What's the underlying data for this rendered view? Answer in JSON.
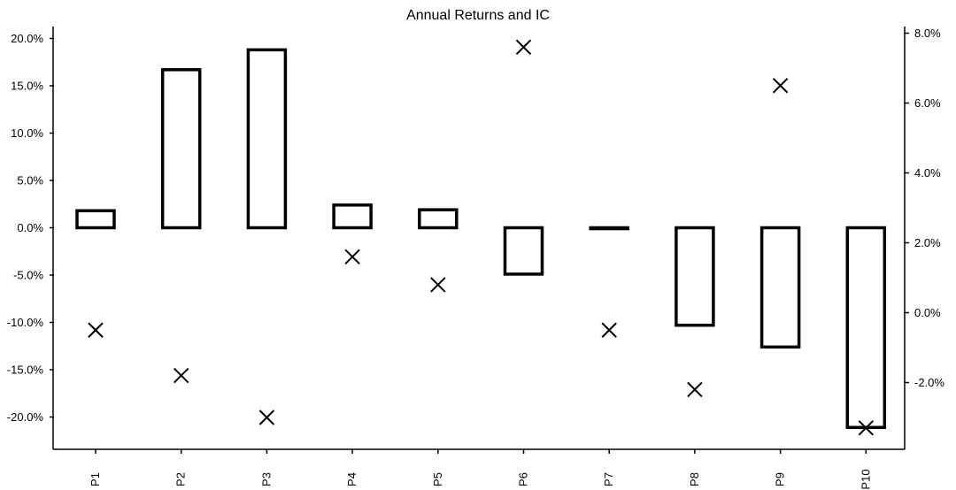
{
  "chart_data": {
    "type": "bar",
    "title": "Annual Returns and IC",
    "categories": [
      "P1",
      "P2",
      "P3",
      "P4",
      "P5",
      "P6",
      "P7",
      "P8",
      "P9",
      "P10"
    ],
    "series": [
      {
        "axis": "left",
        "mark": "bar",
        "values": [
          1.8,
          16.7,
          18.8,
          2.4,
          1.9,
          -4.9,
          -0.1,
          -10.3,
          -12.6,
          -21.1
        ]
      },
      {
        "axis": "right",
        "mark": "x",
        "values": [
          -0.5,
          -1.8,
          -3.0,
          1.6,
          0.8,
          7.6,
          -0.5,
          -2.2,
          6.5,
          -3.3
        ]
      }
    ],
    "y_left": {
      "ylim": [
        -23.0,
        20.0
      ],
      "ticks": [
        20,
        15,
        10,
        5,
        0,
        -5,
        -10,
        -15,
        -20
      ],
      "tick_labels": [
        "20.0%",
        "15.0%",
        "10.0%",
        "5.0%",
        "0.0%",
        "-5.0%",
        "-10.0%",
        "-15.0%",
        "-20.0%"
      ]
    },
    "y_right": {
      "ylim": [
        -3.8,
        8.0
      ],
      "ticks": [
        8,
        6,
        4,
        2,
        0,
        -2
      ],
      "tick_labels": [
        "8.0%",
        "6.0%",
        "4.0%",
        "2.0%",
        "0.0%",
        "-2.0%"
      ]
    },
    "grid": false,
    "legend": "none"
  }
}
